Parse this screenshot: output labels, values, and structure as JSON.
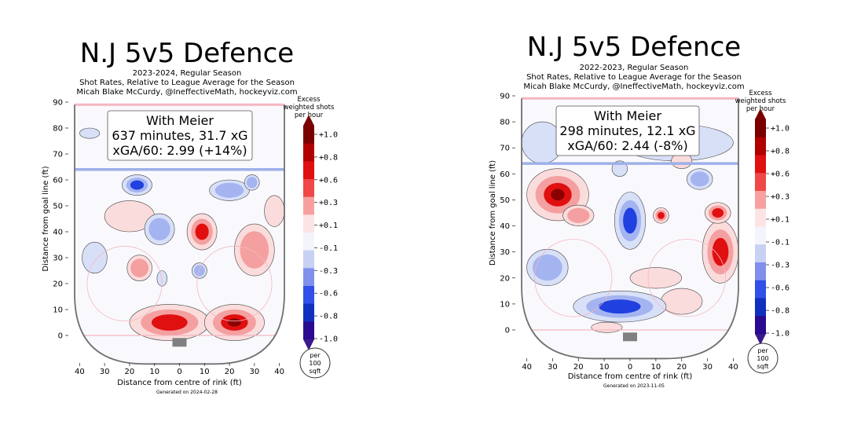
{
  "colors": {
    "dark_red": "#8b0000",
    "red": "#e01010",
    "light_red": "#f4a0a0",
    "pale_red": "#fbdcdc",
    "pale_blue": "#d8e0f8",
    "light_blue": "#a4b4f0",
    "blue": "#2040e0",
    "dark_blue": "#1a0a90",
    "rink_line": "#f4b6c0",
    "board": "#707070"
  },
  "chart_data": [
    {
      "type": "heatmap",
      "title": "N.J 5v5 Defence",
      "subtitle_lines": [
        "2023-2024, Regular Season",
        "Shot Rates, Relative to League Average for the Season",
        "Micah Blake McCurdy, @IneffectiveMath, hockeyviz.com"
      ],
      "info_box": [
        "With Meier",
        "637 minutes, 31.7 xG",
        "xGA/60: 2.99 (+14%)"
      ],
      "xlabel": "Distance from centre of rink (ft)",
      "ylabel": "Distance from goal line (ft)",
      "x_ticks": [
        "40",
        "30",
        "20",
        "10",
        "0",
        "10",
        "20",
        "30",
        "40"
      ],
      "y_ticks": [
        "0",
        "10",
        "20",
        "30",
        "40",
        "50",
        "60",
        "70",
        "80",
        "90"
      ],
      "xlim": [
        -42,
        42
      ],
      "ylim": [
        -8,
        90
      ],
      "colorbar_title": [
        "Excess",
        "weighted shots",
        "per hour"
      ],
      "colorbar_ticks": [
        "+1.0",
        "+0.8",
        "+0.6",
        "+0.3",
        "+0.1",
        "-0.1",
        "-0.3",
        "-0.6",
        "-0.8",
        "-1.0"
      ],
      "unit_badge": [
        "per",
        "100",
        "sqft"
      ],
      "footer": "Generated on 2024-02-28",
      "regions": [
        {
          "x": -4,
          "y": 5,
          "rx": 16,
          "ry": 7,
          "value": 0.7
        },
        {
          "x": 22,
          "y": 5,
          "rx": 12,
          "ry": 7,
          "value": 0.8
        },
        {
          "x": 9,
          "y": 40,
          "rx": 6,
          "ry": 7,
          "value": 0.6
        },
        {
          "x": -16,
          "y": 26,
          "rx": 5,
          "ry": 5,
          "value": 0.4
        },
        {
          "x": -20,
          "y": 46,
          "rx": 10,
          "ry": 6,
          "value": 0.1
        },
        {
          "x": 30,
          "y": 33,
          "rx": 8,
          "ry": 10,
          "value": 0.3
        },
        {
          "x": 38,
          "y": 48,
          "rx": 4,
          "ry": 6,
          "value": 0.1
        },
        {
          "x": -17,
          "y": 58,
          "rx": 6,
          "ry": 4,
          "value": -0.5
        },
        {
          "x": -8,
          "y": 41,
          "rx": 6,
          "ry": 6,
          "value": -0.4
        },
        {
          "x": 20,
          "y": 56,
          "rx": 8,
          "ry": 4,
          "value": -0.4
        },
        {
          "x": 29,
          "y": 59,
          "rx": 3,
          "ry": 3,
          "value": -0.4
        },
        {
          "x": 8,
          "y": 25,
          "rx": 3,
          "ry": 3,
          "value": -0.3
        },
        {
          "x": -7,
          "y": 22,
          "rx": 2,
          "ry": 3,
          "value": -0.2
        },
        {
          "x": -36,
          "y": 78,
          "rx": 4,
          "ry": 2,
          "value": -0.2
        },
        {
          "x": -34,
          "y": 30,
          "rx": 5,
          "ry": 6,
          "value": -0.2
        }
      ]
    },
    {
      "type": "heatmap",
      "title": "N.J 5v5 Defence",
      "subtitle_lines": [
        "2022-2023, Regular Season",
        "Shot Rates, Relative to League Average for the Season",
        "Micah Blake McCurdy, @IneffectiveMath, hockeyviz.com"
      ],
      "info_box": [
        "With Meier",
        "298 minutes, 12.1 xG",
        "xGA/60: 2.44 (-8%)"
      ],
      "xlabel": "Distance from centre of rink (ft)",
      "ylabel": "Distance from goal line (ft)",
      "x_ticks": [
        "40",
        "30",
        "20",
        "10",
        "0",
        "10",
        "20",
        "30",
        "40"
      ],
      "y_ticks": [
        "0",
        "10",
        "20",
        "30",
        "40",
        "50",
        "60",
        "70",
        "80",
        "90"
      ],
      "xlim": [
        -42,
        42
      ],
      "ylim": [
        -8,
        90
      ],
      "colorbar_title": [
        "Excess",
        "weighted shots",
        "per hour"
      ],
      "colorbar_ticks": [
        "+1.0",
        "+0.8",
        "+0.6",
        "+0.3",
        "+0.1",
        "-0.1",
        "-0.3",
        "-0.6",
        "-0.8",
        "-1.0"
      ],
      "unit_badge": [
        "per",
        "100",
        "sqft"
      ],
      "footer": "Generated on 2023-11-05",
      "regions": [
        {
          "x": -34,
          "y": 72,
          "rx": 8,
          "ry": 8,
          "value": -0.2
        },
        {
          "x": 18,
          "y": 72,
          "rx": 22,
          "ry": 7,
          "value": -0.2
        },
        {
          "x": -28,
          "y": 52,
          "rx": 12,
          "ry": 10,
          "value": 0.9
        },
        {
          "x": -20,
          "y": 44,
          "rx": 6,
          "ry": 4,
          "value": 0.3
        },
        {
          "x": 35,
          "y": 30,
          "rx": 7,
          "ry": 12,
          "value": 0.7
        },
        {
          "x": 34,
          "y": 45,
          "rx": 5,
          "ry": 4,
          "value": 0.6
        },
        {
          "x": 12,
          "y": 44,
          "rx": 3,
          "ry": 3,
          "value": 0.5
        },
        {
          "x": 10,
          "y": 20,
          "rx": 10,
          "ry": 4,
          "value": 0.2
        },
        {
          "x": 20,
          "y": 11,
          "rx": 8,
          "ry": 5,
          "value": 0.2
        },
        {
          "x": -9,
          "y": 1,
          "rx": 6,
          "ry": 2,
          "value": 0.2
        },
        {
          "x": 20,
          "y": 65,
          "rx": 4,
          "ry": 3,
          "value": 0.2
        },
        {
          "x": -4,
          "y": 9,
          "rx": 18,
          "ry": 6,
          "value": -0.7
        },
        {
          "x": 0,
          "y": 42,
          "rx": 6,
          "ry": 11,
          "value": -0.5
        },
        {
          "x": -32,
          "y": 24,
          "rx": 8,
          "ry": 7,
          "value": -0.4
        },
        {
          "x": 27,
          "y": 58,
          "rx": 5,
          "ry": 4,
          "value": -0.4
        },
        {
          "x": -4,
          "y": 62,
          "rx": 3,
          "ry": 3,
          "value": -0.2
        }
      ]
    }
  ]
}
